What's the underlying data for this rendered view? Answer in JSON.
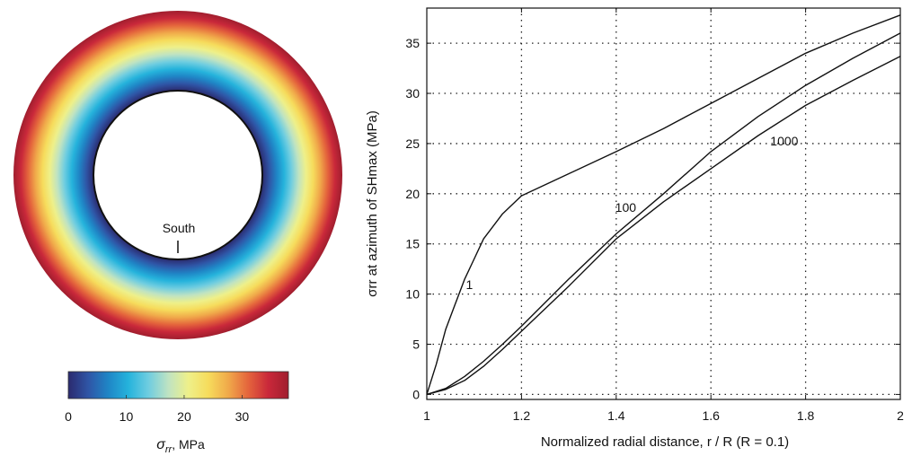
{
  "ring": {
    "annotation": "South"
  },
  "colorbar": {
    "ticks": [
      "0",
      "10",
      "20",
      "30"
    ],
    "tick_values": [
      0,
      10,
      20,
      30
    ],
    "range": [
      0,
      38
    ],
    "label_symbol": "σ",
    "label_sub": "rr",
    "label_unit": ", MPa",
    "colormap": [
      "#2b2a6e",
      "#2f55a6",
      "#1f86c6",
      "#25b3dc",
      "#6fcde0",
      "#bfe3c2",
      "#eef08a",
      "#f6dc5c",
      "#f0a94a",
      "#e4643c",
      "#c9283a",
      "#a01e2e"
    ]
  },
  "chart_data": {
    "type": "line",
    "xlabel": "Normalized radial distance,  r / R  (R = 0.1)",
    "ylabel": "σrr at azimuth of SHmax (MPa)",
    "xlim": [
      1,
      2
    ],
    "ylim": [
      -0.5,
      38.5
    ],
    "xticks": [
      1,
      1.2,
      1.4,
      1.6,
      1.8,
      2
    ],
    "xtick_labels": [
      "1",
      "1.2",
      "1.4",
      "1.6",
      "1.8",
      "2"
    ],
    "yticks": [
      0,
      5,
      10,
      15,
      20,
      25,
      30,
      35
    ],
    "ytick_labels": [
      "0",
      "5",
      "10",
      "15",
      "20",
      "25",
      "30",
      "35"
    ],
    "grid": true,
    "series": [
      {
        "name": "1",
        "x": [
          1.0,
          1.02,
          1.04,
          1.06,
          1.08,
          1.1,
          1.12,
          1.16,
          1.2,
          1.3,
          1.4,
          1.5,
          1.6,
          1.7,
          1.8,
          1.9,
          2.0
        ],
        "y": [
          0,
          3.0,
          6.5,
          9.0,
          11.5,
          13.5,
          15.5,
          18.0,
          19.8,
          22.0,
          24.2,
          26.5,
          29.0,
          31.5,
          34.0,
          36.0,
          37.8
        ]
      },
      {
        "name": "100",
        "x": [
          1.0,
          1.04,
          1.08,
          1.12,
          1.16,
          1.2,
          1.3,
          1.4,
          1.5,
          1.6,
          1.7,
          1.8,
          1.9,
          2.0
        ],
        "y": [
          0,
          0.6,
          1.8,
          3.3,
          5.0,
          6.8,
          11.5,
          16.0,
          20.0,
          24.2,
          27.7,
          30.8,
          33.5,
          36.0
        ]
      },
      {
        "name": "1000",
        "x": [
          1.0,
          1.04,
          1.08,
          1.12,
          1.16,
          1.2,
          1.3,
          1.4,
          1.5,
          1.6,
          1.7,
          1.8,
          1.9,
          2.0
        ],
        "y": [
          0,
          0.5,
          1.4,
          2.8,
          4.5,
          6.3,
          10.8,
          15.5,
          19.2,
          22.5,
          25.8,
          28.8,
          31.3,
          33.7
        ]
      }
    ],
    "annotations": [
      {
        "text": "1",
        "x": 1.09,
        "y": 10.5
      },
      {
        "text": "100",
        "x": 1.42,
        "y": 18.2
      },
      {
        "text": "1000",
        "x": 1.755,
        "y": 24.8
      }
    ]
  }
}
